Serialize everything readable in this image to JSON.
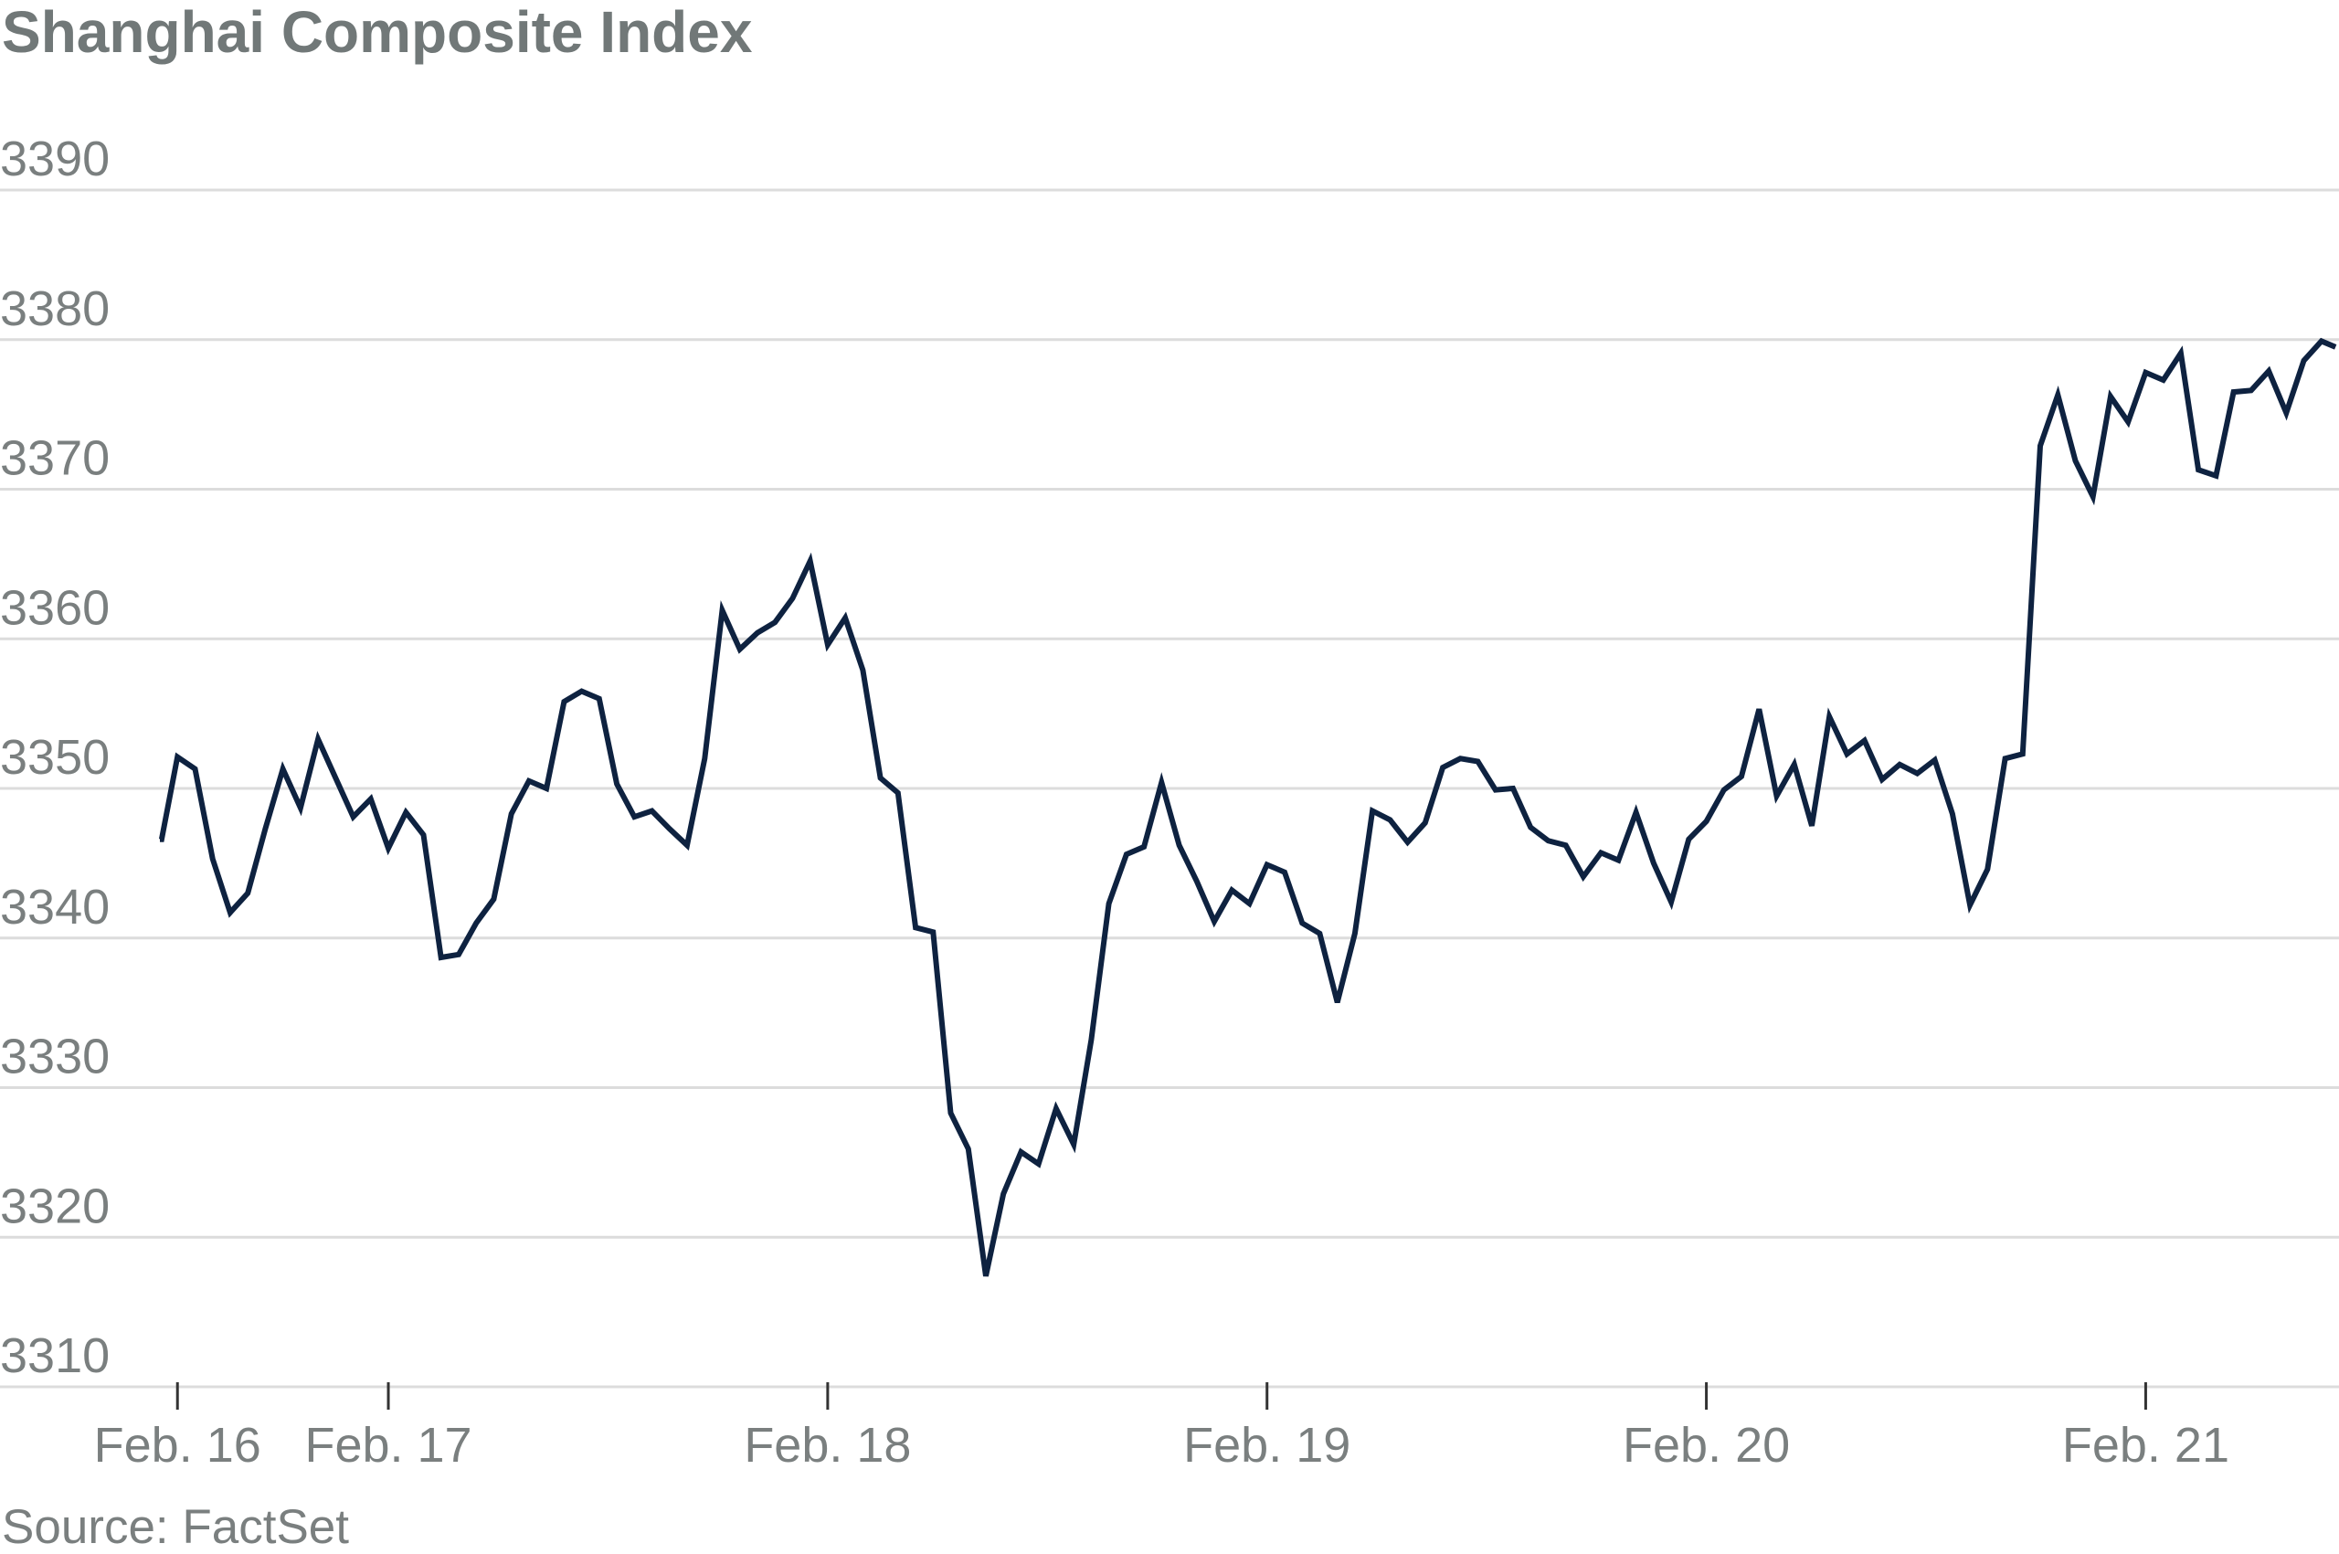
{
  "chart_data": {
    "type": "line",
    "title": "Shanghai Composite Index",
    "source": "Source: FactSet",
    "ylim": [
      3306,
      3391
    ],
    "y_ticks": [
      3390,
      3380,
      3370,
      3360,
      3350,
      3340,
      3330,
      3320,
      3310
    ],
    "x_ticks": [
      {
        "label": "Feb. 16",
        "x": 1
      },
      {
        "label": "Feb. 17",
        "x": 13
      },
      {
        "label": "Feb. 18",
        "x": 38
      },
      {
        "label": "Feb. 19",
        "x": 63
      },
      {
        "label": "Feb. 20",
        "x": 88
      },
      {
        "label": "Feb. 21",
        "x": 113
      }
    ],
    "grid": true,
    "colors": {
      "line": "#0e2240",
      "grid": "#dcdcdc",
      "text": "#7a7f7f",
      "title": "#717878"
    },
    "series": [
      {
        "values": [
          [
            0,
            3346.6
          ],
          [
            0.1,
            3346.6
          ],
          [
            1,
            3352.1
          ],
          [
            2,
            3351.3
          ],
          [
            3,
            3345.3
          ],
          [
            4,
            3341.7
          ],
          [
            5,
            3343.0
          ],
          [
            6,
            3347.3
          ],
          [
            7,
            3351.3
          ],
          [
            8,
            3348.7
          ],
          [
            9,
            3353.3
          ],
          [
            10,
            3350.7
          ],
          [
            11,
            3348.1
          ],
          [
            12,
            3349.3
          ],
          [
            13,
            3346.0
          ],
          [
            14,
            3348.4
          ],
          [
            15,
            3346.9
          ],
          [
            16,
            3338.7
          ],
          [
            17,
            3338.9
          ],
          [
            18,
            3341.0
          ],
          [
            19,
            3342.6
          ],
          [
            20,
            3348.3
          ],
          [
            21,
            3350.5
          ],
          [
            22,
            3350.0
          ],
          [
            23,
            3355.8
          ],
          [
            24,
            3356.5
          ],
          [
            25,
            3356.0
          ],
          [
            26,
            3350.3
          ],
          [
            27,
            3348.1
          ],
          [
            28,
            3348.5
          ],
          [
            29,
            3347.3
          ],
          [
            30,
            3346.2
          ],
          [
            31,
            3352.0
          ],
          [
            32,
            3361.9
          ],
          [
            33,
            3359.3
          ],
          [
            34,
            3360.4
          ],
          [
            35,
            3361.1
          ],
          [
            36,
            3362.7
          ],
          [
            37,
            3365.2
          ],
          [
            38,
            3359.6
          ],
          [
            39,
            3361.4
          ],
          [
            40,
            3357.9
          ],
          [
            41,
            3350.7
          ],
          [
            42,
            3349.7
          ],
          [
            43,
            3340.7
          ],
          [
            44,
            3340.4
          ],
          [
            45,
            3328.3
          ],
          [
            46,
            3325.9
          ],
          [
            47,
            3317.4
          ],
          [
            48,
            3322.9
          ],
          [
            49,
            3325.7
          ],
          [
            50,
            3324.9
          ],
          [
            51,
            3328.6
          ],
          [
            52,
            3326.2
          ],
          [
            53,
            3333.2
          ],
          [
            54,
            3342.3
          ],
          [
            55,
            3345.6
          ],
          [
            56,
            3346.1
          ],
          [
            57,
            3350.4
          ],
          [
            58,
            3346.2
          ],
          [
            59,
            3343.8
          ],
          [
            60,
            3341.1
          ],
          [
            61,
            3343.2
          ],
          [
            62,
            3342.3
          ],
          [
            63,
            3344.9
          ],
          [
            64,
            3344.4
          ],
          [
            65,
            3341.0
          ],
          [
            66,
            3340.3
          ],
          [
            67,
            3335.7
          ],
          [
            68,
            3340.3
          ],
          [
            69,
            3348.5
          ],
          [
            70,
            3347.9
          ],
          [
            71,
            3346.4
          ],
          [
            72,
            3347.7
          ],
          [
            73,
            3351.4
          ],
          [
            74,
            3352.0
          ],
          [
            75,
            3351.8
          ],
          [
            76,
            3349.9
          ],
          [
            77,
            3350.0
          ],
          [
            78,
            3347.4
          ],
          [
            79,
            3346.5
          ],
          [
            80,
            3346.2
          ],
          [
            81,
            3344.1
          ],
          [
            82,
            3345.7
          ],
          [
            83,
            3345.2
          ],
          [
            84,
            3348.4
          ],
          [
            85,
            3345.0
          ],
          [
            86,
            3342.4
          ],
          [
            87,
            3346.6
          ],
          [
            88,
            3347.8
          ],
          [
            89,
            3349.9
          ],
          [
            90,
            3350.8
          ],
          [
            91,
            3355.3
          ],
          [
            92,
            3349.5
          ],
          [
            93,
            3351.6
          ],
          [
            94,
            3347.5
          ],
          [
            95,
            3354.8
          ],
          [
            96,
            3352.3
          ],
          [
            97,
            3353.2
          ],
          [
            98,
            3350.6
          ],
          [
            99,
            3351.6
          ],
          [
            100,
            3351.0
          ],
          [
            101,
            3351.9
          ],
          [
            102,
            3348.3
          ],
          [
            103,
            3342.2
          ],
          [
            104,
            3344.6
          ],
          [
            105,
            3352.0
          ],
          [
            106,
            3352.3
          ],
          [
            107,
            3372.9
          ],
          [
            108,
            3376.3
          ],
          [
            109,
            3371.9
          ],
          [
            110,
            3369.5
          ],
          [
            111,
            3376.2
          ],
          [
            112,
            3374.5
          ],
          [
            113,
            3377.8
          ],
          [
            114,
            3377.3
          ],
          [
            115,
            3379.1
          ],
          [
            116,
            3371.3
          ],
          [
            117,
            3370.9
          ],
          [
            118,
            3376.5
          ],
          [
            119,
            3376.6
          ],
          [
            120,
            3377.9
          ],
          [
            121,
            3375.1
          ],
          [
            122,
            3378.6
          ],
          [
            123,
            3379.9
          ],
          [
            123.8,
            3379.5
          ]
        ]
      }
    ]
  }
}
